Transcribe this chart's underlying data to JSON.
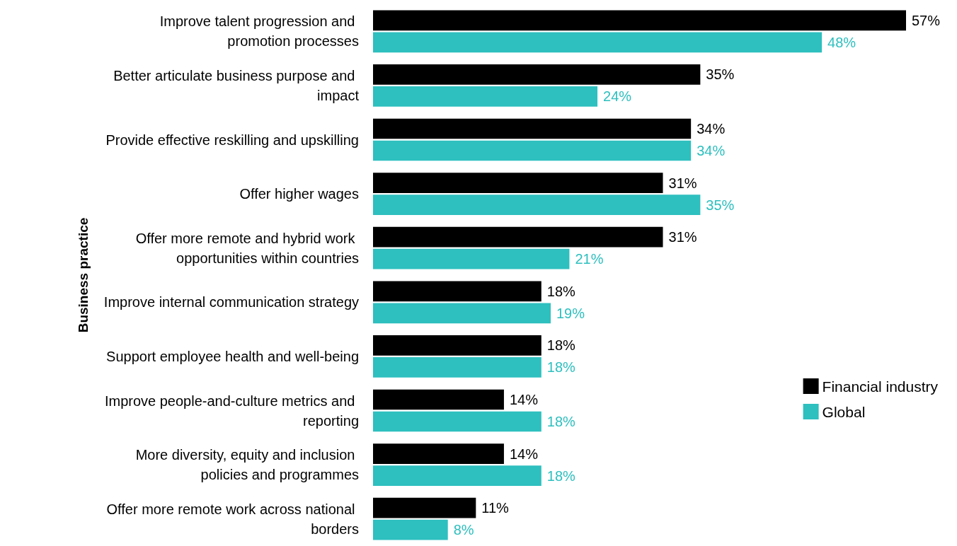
{
  "chart_data": {
    "type": "bar",
    "orientation": "horizontal",
    "ylabel": "Business practice",
    "categories": [
      "Improve talent progression and promotion processes",
      "Better articulate business purpose and impact",
      "Provide effective reskilling and upskilling",
      "Offer higher wages",
      "Offer more remote and hybrid work opportunities within countries",
      "Improve internal communication strategy",
      "Support employee health and well-being",
      "Improve people-and-culture metrics and reporting",
      "More diversity, equity and inclusion policies and programmes",
      "Offer more remote work across national borders"
    ],
    "series": [
      {
        "name": "Financial industry",
        "color": "#000000",
        "values": [
          57,
          35,
          34,
          31,
          31,
          18,
          18,
          14,
          14,
          11
        ],
        "value_labels": [
          "57%",
          "35%",
          "34%",
          "31%",
          "31%",
          "18%",
          "18%",
          "14%",
          "14%",
          "11%"
        ]
      },
      {
        "name": "Global",
        "color": "#2ebfbf",
        "values": [
          48,
          24,
          34,
          35,
          21,
          19,
          18,
          18,
          18,
          8
        ],
        "value_labels": [
          "48%",
          "24%",
          "34%",
          "35%",
          "21%",
          "19%",
          "18%",
          "18%",
          "18%",
          "8%"
        ]
      }
    ],
    "tick_labels": "y",
    "legend": "right"
  }
}
